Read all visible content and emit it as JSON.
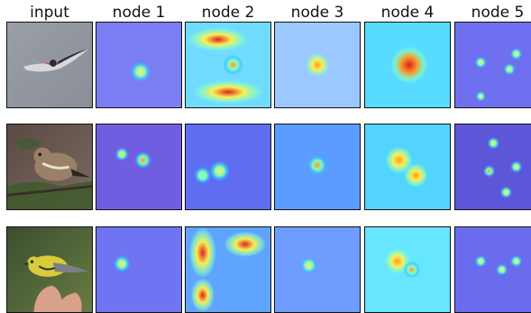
{
  "columns": [
    {
      "label": "input",
      "kind": "photo"
    },
    {
      "label": "node 1",
      "kind": "heatmap",
      "tint": "#7b7ef2"
    },
    {
      "label": "node 2",
      "kind": "heatmap",
      "tint": "#5f88ff"
    },
    {
      "label": "node 3",
      "kind": "heatmap",
      "tint": "#7fa8ff"
    },
    {
      "label": "node 4",
      "kind": "heatmap",
      "tint": "#57dcff"
    },
    {
      "label": "node 5",
      "kind": "heatmap",
      "tint": "#6f70f0"
    }
  ],
  "rows": [
    {
      "subject": "tern in flight",
      "photo": {
        "bg": "#9a9ea6",
        "bg2": "#8a8f98",
        "body": "#d8d8dc",
        "dark": "#2a2a2f",
        "accent": "#d64a2e"
      }
    },
    {
      "subject": "sparrow on branch",
      "photo": {
        "bg": "#5a4a45",
        "bg2": "#7b6a60",
        "body": "#9a8066",
        "dark": "#2b2522",
        "accent": "#3f5b2d"
      }
    },
    {
      "subject": "yellow warbler in hand",
      "photo": {
        "bg": "#3a4e2f",
        "bg2": "#6a7c42",
        "body": "#d9cc38",
        "dark": "#2e3035",
        "accent": "#d9a08a"
      }
    }
  ],
  "heat_colors": [
    "#1f2dbb",
    "#2ec2ff",
    "#8dffba",
    "#fff24d",
    "#ff9a22",
    "#e02020"
  ],
  "heatmaps": [
    [
      null,
      {
        "bg": "#7b7ef2",
        "blobs": [
          {
            "level": 0.65
          }
        ]
      },
      {
        "bg": "#6fdcff",
        "blobs": [
          {
            "level": 0.98
          },
          {
            "level": 0.95
          },
          {
            "level": 0.7
          }
        ]
      },
      {
        "bg": "#9cc7ff",
        "blobs": [
          {
            "level": 0.8
          }
        ]
      },
      {
        "bg": "#57dcff",
        "blobs": [
          {
            "level": 1.0
          }
        ]
      },
      {
        "bg": "#6f70f0",
        "blobs": [
          {
            "level": 0.6
          },
          {
            "level": 0.6
          },
          {
            "level": 0.6
          },
          {
            "level": 0.55
          }
        ]
      }
    ],
    [
      null,
      {
        "bg": "#6f5fe0",
        "blobs": [
          {
            "level": 0.7
          },
          {
            "level": 0.55
          }
        ]
      },
      {
        "bg": "#5f6ef0",
        "blobs": [
          {
            "level": 0.6
          },
          {
            "level": 0.45
          }
        ]
      },
      {
        "bg": "#5c9cff",
        "blobs": [
          {
            "level": 0.7
          }
        ]
      },
      {
        "bg": "#52d4ff",
        "blobs": [
          {
            "level": 0.85
          },
          {
            "level": 0.8
          }
        ]
      },
      {
        "bg": "#5e56d8",
        "blobs": [
          {
            "level": 0.65
          },
          {
            "level": 0.65
          },
          {
            "level": 0.7
          },
          {
            "level": 0.65
          }
        ]
      }
    ],
    [
      null,
      {
        "bg": "#6f74f2",
        "blobs": [
          {
            "level": 0.65
          }
        ]
      },
      {
        "bg": "#5fa5ff",
        "blobs": [
          {
            "level": 0.98
          },
          {
            "level": 0.98
          },
          {
            "level": 0.95
          }
        ]
      },
      {
        "bg": "#6f9cff",
        "blobs": [
          {
            "level": 0.6
          }
        ]
      },
      {
        "bg": "#67e6ff",
        "blobs": [
          {
            "level": 0.82
          },
          {
            "level": 0.7
          }
        ]
      },
      {
        "bg": "#6a6cf0",
        "blobs": [
          {
            "level": 0.6
          },
          {
            "level": 0.6
          },
          {
            "level": 0.6
          }
        ]
      }
    ]
  ]
}
